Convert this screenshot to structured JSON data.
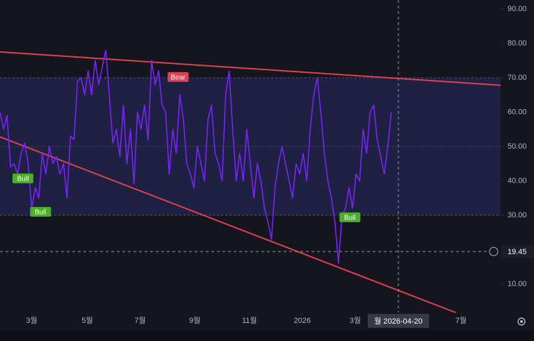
{
  "chart_data": {
    "type": "line",
    "x": [
      0,
      4,
      8,
      12,
      16,
      20,
      24,
      28,
      32,
      36,
      40,
      44,
      48,
      52,
      56,
      60,
      64,
      68,
      72,
      76,
      80,
      84,
      88,
      92,
      96,
      100,
      104,
      108,
      112,
      116,
      120,
      124,
      128,
      132,
      136,
      140,
      144,
      148,
      152,
      156,
      160,
      164,
      168,
      172,
      176,
      180,
      184,
      188,
      192,
      196,
      200,
      204,
      208,
      212,
      216,
      220,
      224,
      228,
      232,
      236,
      240,
      244,
      248,
      252,
      256,
      260,
      264,
      268,
      272,
      276,
      280,
      284,
      288,
      292,
      296,
      300,
      304,
      308,
      312,
      316,
      320,
      324,
      328,
      332,
      336,
      340,
      344,
      348,
      352,
      356,
      360,
      364,
      368,
      372,
      376,
      380,
      384,
      388,
      392,
      396,
      400,
      404,
      408,
      412,
      416,
      420,
      424,
      428,
      432,
      436,
      440,
      444
    ],
    "series": [
      {
        "color": "#7b22ff",
        "values": [
          60,
          55,
          59,
          44,
          45,
          42,
          48,
          51,
          45,
          32,
          38,
          35,
          48,
          42,
          50,
          45,
          47,
          42,
          45,
          35,
          53,
          52,
          69,
          70,
          65,
          72,
          65,
          75,
          68,
          73,
          78,
          65,
          51,
          55,
          47,
          62,
          45,
          55,
          39,
          60,
          55,
          62,
          52,
          75,
          68,
          72,
          62,
          60,
          42,
          55,
          48,
          65,
          58,
          45,
          42,
          38,
          50,
          45,
          40,
          58,
          62,
          48,
          45,
          40,
          65,
          72,
          55,
          40,
          48,
          40,
          55,
          45,
          35,
          45,
          40,
          32,
          28,
          23,
          38,
          45,
          50,
          45,
          40,
          35,
          45,
          42,
          48,
          40,
          55,
          65,
          70,
          60,
          48,
          40,
          35,
          28,
          16,
          30,
          32,
          38,
          32,
          42,
          40,
          55,
          48,
          60,
          62,
          52,
          47,
          42,
          50,
          60
        ]
      }
    ],
    "xlim": [
      0,
      568
    ],
    "xticks": [
      {
        "value": 36,
        "label": "3월"
      },
      {
        "value": 99,
        "label": "5월"
      },
      {
        "value": 159,
        "label": "7월"
      },
      {
        "value": 221,
        "label": "9월"
      },
      {
        "value": 283,
        "label": "11월"
      },
      {
        "value": 343,
        "label": "2026"
      },
      {
        "value": 403,
        "label": "3월"
      },
      {
        "value": 523,
        "label": "7월"
      }
    ],
    "ylim": [
      1.7,
      92.6
    ],
    "yticks": [
      {
        "value": 10,
        "label": "10.00"
      },
      {
        "value": 30,
        "label": "30.00"
      },
      {
        "value": 40,
        "label": "40.00"
      },
      {
        "value": 50,
        "label": "50.00"
      },
      {
        "value": 60,
        "label": "60.00"
      },
      {
        "value": 70,
        "label": "70.00"
      },
      {
        "value": 80,
        "label": "80.00"
      },
      {
        "value": 90,
        "label": "90.00"
      }
    ],
    "band": [
      30,
      70
    ],
    "levels": [
      30,
      50,
      70
    ],
    "trendlines": [
      {
        "x": [
          0,
          568
        ],
        "values": [
          77.5,
          67.8
        ],
        "color": "#e0404f"
      },
      {
        "x": [
          0,
          517
        ],
        "values": [
          52.8,
          1.7
        ],
        "color": "#e0404f"
      }
    ],
    "annotations": [
      {
        "text": "Bull",
        "x": 26,
        "y": 40.7,
        "color": "#4caf28"
      },
      {
        "text": "Bull",
        "x": 46,
        "y": 31,
        "color": "#4caf28"
      },
      {
        "text": "Bear",
        "x": 202,
        "y": 70.2,
        "color": "#e0404f"
      },
      {
        "text": "Bull",
        "x": 397,
        "y": 29.4,
        "color": "#4caf28"
      }
    ],
    "crosshair": {
      "x": 452,
      "x_label": "월 2026-04-20",
      "y": 19.45,
      "y_label": "19.45"
    }
  }
}
